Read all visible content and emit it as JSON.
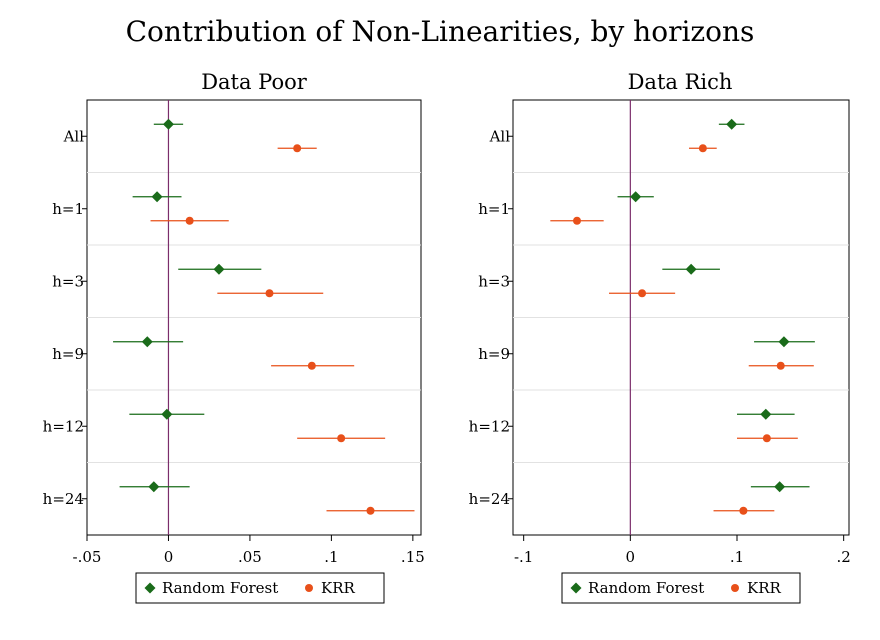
{
  "title": "Contribution of Non-Linearities, by horizons",
  "chart_data": [
    {
      "type": "scatter",
      "subtype": "coefficient-plot-with-confidence-intervals",
      "title": "Data Poor",
      "categories": [
        "All",
        "h=1",
        "h=3",
        "h=9",
        "h=12",
        "h=24"
      ],
      "xlim": [
        -0.05,
        0.155
      ],
      "xticks": [
        -0.05,
        0,
        0.05,
        0.1,
        0.15
      ],
      "xtick_labels": [
        "-.05",
        "0",
        ".05",
        ".1",
        ".15"
      ],
      "reference_line": 0,
      "series": [
        {
          "name": "Random Forest",
          "color": "#1a6b1a",
          "marker": "diamond",
          "values": [
            0.0,
            -0.007,
            0.031,
            -0.013,
            -0.001,
            -0.009
          ],
          "ci_low": [
            -0.009,
            -0.022,
            0.006,
            -0.034,
            -0.024,
            -0.03
          ],
          "ci_high": [
            0.009,
            0.008,
            0.057,
            0.009,
            0.022,
            0.013
          ]
        },
        {
          "name": "KRR",
          "color": "#e8501a",
          "marker": "circle",
          "values": [
            0.079,
            0.013,
            0.062,
            0.088,
            0.106,
            0.124
          ],
          "ci_low": [
            0.067,
            -0.011,
            0.03,
            0.063,
            0.079,
            0.097
          ],
          "ci_high": [
            0.091,
            0.037,
            0.095,
            0.114,
            0.133,
            0.151
          ]
        }
      ]
    },
    {
      "type": "scatter",
      "subtype": "coefficient-plot-with-confidence-intervals",
      "title": "Data Rich",
      "categories": [
        "All",
        "h=1",
        "h=3",
        "h=9",
        "h=12",
        "h=24"
      ],
      "xlim": [
        -0.11,
        0.205
      ],
      "xticks": [
        -0.1,
        0,
        0.1,
        0.2
      ],
      "xtick_labels": [
        "-.1",
        "0",
        ".1",
        ".2"
      ],
      "reference_line": 0,
      "series": [
        {
          "name": "Random Forest",
          "color": "#1a6b1a",
          "marker": "diamond",
          "values": [
            0.095,
            0.005,
            0.057,
            0.144,
            0.127,
            0.14
          ],
          "ci_low": [
            0.083,
            -0.012,
            0.03,
            0.116,
            0.1,
            0.113
          ],
          "ci_high": [
            0.107,
            0.022,
            0.084,
            0.173,
            0.154,
            0.168
          ]
        },
        {
          "name": "KRR",
          "color": "#e8501a",
          "marker": "circle",
          "values": [
            0.068,
            -0.05,
            0.011,
            0.141,
            0.128,
            0.106
          ],
          "ci_low": [
            0.055,
            -0.075,
            -0.02,
            0.111,
            0.1,
            0.078
          ],
          "ci_high": [
            0.081,
            -0.025,
            0.042,
            0.172,
            0.157,
            0.135
          ]
        }
      ]
    }
  ]
}
